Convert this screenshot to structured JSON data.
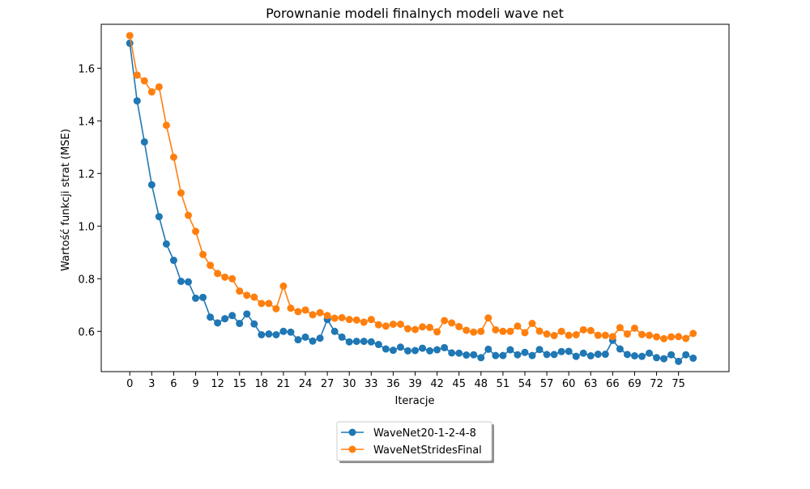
{
  "chart_data": {
    "type": "line",
    "title": "Porownanie modeli finalnych modeli wave net",
    "xlabel": "Iteracje",
    "ylabel": "Wartość funkcji strat (MSE)",
    "xlim": [
      -3.9,
      81.9
    ],
    "ylim": [
      0.447,
      1.767
    ],
    "xticks": [
      0,
      3,
      6,
      9,
      12,
      15,
      18,
      21,
      24,
      27,
      30,
      33,
      36,
      39,
      42,
      45,
      48,
      51,
      54,
      57,
      60,
      63,
      66,
      69,
      72,
      75
    ],
    "yticks": [
      0.6,
      0.8,
      1.0,
      1.2,
      1.4,
      1.6
    ],
    "ytick_labels": [
      "0.6",
      "0.8",
      "1.0",
      "1.2",
      "1.4",
      "1.6"
    ],
    "legend_position": "bottom-center (outside)",
    "series": [
      {
        "name": "WaveNet20-1-2-4-8",
        "color": "#1f77b4",
        "values": [
          1.695,
          1.476,
          1.32,
          1.157,
          1.036,
          0.932,
          0.87,
          0.79,
          0.788,
          0.726,
          0.729,
          0.654,
          0.632,
          0.648,
          0.66,
          0.63,
          0.666,
          0.628,
          0.587,
          0.59,
          0.587,
          0.6,
          0.597,
          0.568,
          0.578,
          0.563,
          0.574,
          0.645,
          0.6,
          0.578,
          0.56,
          0.562,
          0.562,
          0.56,
          0.55,
          0.533,
          0.528,
          0.54,
          0.526,
          0.527,
          0.536,
          0.526,
          0.53,
          0.538,
          0.518,
          0.517,
          0.51,
          0.511,
          0.5,
          0.532,
          0.508,
          0.508,
          0.53,
          0.511,
          0.52,
          0.508,
          0.531,
          0.512,
          0.512,
          0.523,
          0.524,
          0.505,
          0.517,
          0.507,
          0.513,
          0.513,
          0.566,
          0.533,
          0.512,
          0.507,
          0.505,
          0.517,
          0.5,
          0.496,
          0.511,
          0.486,
          0.511,
          0.498
        ]
      },
      {
        "name": "WaveNetStridesFinal",
        "color": "#ff7f0e",
        "values": [
          1.724,
          1.574,
          1.552,
          1.51,
          1.529,
          1.383,
          1.262,
          1.126,
          1.041,
          0.98,
          0.892,
          0.851,
          0.82,
          0.806,
          0.8,
          0.753,
          0.737,
          0.73,
          0.706,
          0.706,
          0.686,
          0.772,
          0.688,
          0.675,
          0.681,
          0.663,
          0.671,
          0.66,
          0.65,
          0.652,
          0.645,
          0.643,
          0.635,
          0.645,
          0.625,
          0.62,
          0.627,
          0.627,
          0.61,
          0.607,
          0.617,
          0.615,
          0.598,
          0.641,
          0.632,
          0.618,
          0.604,
          0.597,
          0.6,
          0.651,
          0.606,
          0.6,
          0.6,
          0.62,
          0.595,
          0.63,
          0.601,
          0.59,
          0.584,
          0.6,
          0.585,
          0.587,
          0.606,
          0.603,
          0.585,
          0.585,
          0.58,
          0.614,
          0.59,
          0.612,
          0.588,
          0.585,
          0.579,
          0.572,
          0.579,
          0.58,
          0.573,
          0.592
        ]
      }
    ]
  }
}
